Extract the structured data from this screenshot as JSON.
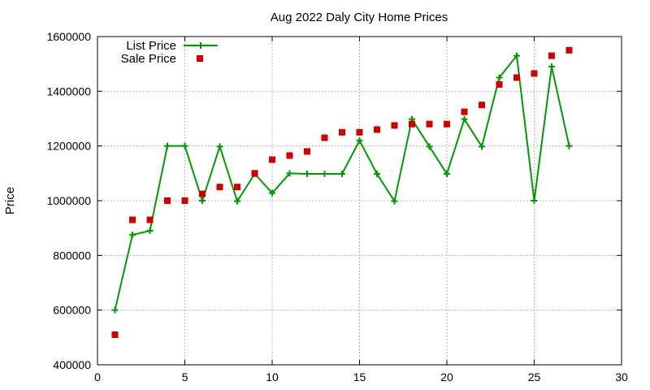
{
  "chart_data": {
    "type": "line",
    "title": "Aug 2022 Daly City Home Prices",
    "xlabel": "",
    "ylabel": "Price",
    "xlim": [
      0,
      30
    ],
    "ylim": [
      400000,
      1600000
    ],
    "xticks": [
      0,
      5,
      10,
      15,
      20,
      25,
      30
    ],
    "yticks": [
      400000,
      600000,
      800000,
      1000000,
      1200000,
      1400000,
      1600000
    ],
    "grid": true,
    "legend_position": "top-left",
    "series": [
      {
        "name": "List Price",
        "style": "linespoints",
        "color": "#009900",
        "x": [
          1,
          2,
          3,
          4,
          5,
          6,
          7,
          8,
          9,
          10,
          11,
          12,
          13,
          14,
          15,
          16,
          17,
          18,
          19,
          20,
          21,
          22,
          23,
          24,
          25,
          26,
          27
        ],
        "values": [
          600000,
          875000,
          890000,
          1200000,
          1200000,
          1000000,
          1198000,
          998000,
          1098000,
          1028000,
          1100000,
          1098000,
          1098000,
          1098000,
          1220000,
          1098000,
          998000,
          1298000,
          1198000,
          1098000,
          1298000,
          1198000,
          1450000,
          1530000,
          1000000,
          1490000,
          1200000
        ]
      },
      {
        "name": "Sale Price",
        "style": "points",
        "color": "#cc0000",
        "x": [
          1,
          2,
          3,
          4,
          5,
          6,
          7,
          8,
          9,
          10,
          11,
          12,
          13,
          14,
          15,
          16,
          17,
          18,
          19,
          20,
          21,
          22,
          23,
          24,
          25,
          26,
          27
        ],
        "values": [
          510000,
          930000,
          930000,
          1000000,
          1000000,
          1025000,
          1050000,
          1050000,
          1100000,
          1150000,
          1165000,
          1180000,
          1230000,
          1250000,
          1250000,
          1260000,
          1275000,
          1280000,
          1280000,
          1280000,
          1325000,
          1350000,
          1425000,
          1450000,
          1465000,
          1530000,
          1550000
        ]
      }
    ]
  }
}
